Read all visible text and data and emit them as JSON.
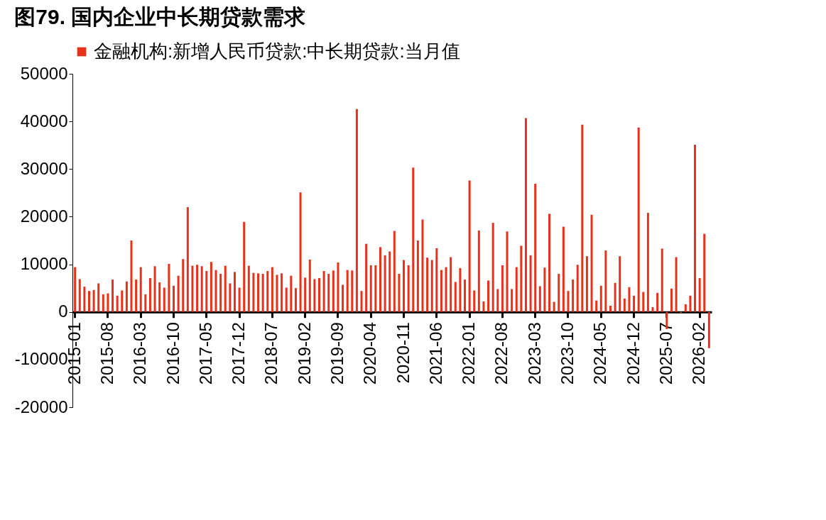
{
  "chart_data": {
    "type": "bar",
    "title": "图79. 国内企业中长期贷款需求",
    "categories": [
      "2015-01",
      null,
      null,
      null,
      null,
      null,
      null,
      "2015-08",
      null,
      null,
      null,
      null,
      null,
      null,
      "2016-03",
      null,
      null,
      null,
      null,
      null,
      null,
      "2016-10",
      null,
      null,
      null,
      null,
      null,
      null,
      "2017-05",
      null,
      null,
      null,
      null,
      null,
      null,
      "2017-12",
      null,
      null,
      null,
      null,
      null,
      null,
      "2018-07",
      null,
      null,
      null,
      null,
      null,
      null,
      "2019-02",
      null,
      null,
      null,
      null,
      null,
      null,
      "2019-09",
      null,
      null,
      null,
      null,
      null,
      null,
      "2020-04",
      null,
      null,
      null,
      null,
      null,
      null,
      "2020-11",
      null,
      null,
      null,
      null,
      null,
      null,
      "2021-06",
      null,
      null,
      null,
      null,
      null,
      null,
      "2022-01",
      null,
      null,
      null,
      null,
      null,
      null,
      "2022-08",
      null,
      null,
      null,
      null,
      null,
      null,
      "2023-03",
      null,
      null,
      null,
      null,
      null,
      null,
      "2023-10",
      null,
      null,
      null,
      null,
      null,
      null,
      "2024-05",
      null,
      null,
      null,
      null,
      null,
      null,
      "2024-12",
      null,
      null,
      null,
      null,
      null,
      null,
      "2025-07",
      null,
      null,
      null,
      null,
      null,
      null,
      "2026-02",
      null,
      null
    ],
    "series": [
      {
        "name": "金融机构:新增人民币贷款:中长期贷款:当月值",
        "color": "#e8311a",
        "values": [
          9400,
          6900,
          5300,
          4400,
          4600,
          6000,
          3700,
          3900,
          6800,
          3400,
          4500,
          6400,
          15000,
          6800,
          9400,
          3700,
          7100,
          9600,
          6200,
          5100,
          10100,
          5500,
          7600,
          11100,
          22000,
          9700,
          9900,
          9600,
          8600,
          10500,
          8800,
          8000,
          9700,
          6000,
          8400,
          5100,
          18900,
          9700,
          8200,
          8100,
          8000,
          8600,
          9400,
          7800,
          8100,
          5100,
          7600,
          5000,
          25100,
          7200,
          11000,
          6900,
          7100,
          8600,
          8000,
          8700,
          10400,
          5700,
          8800,
          8700,
          42600,
          4400,
          14300,
          9800,
          9800,
          13600,
          11900,
          12700,
          17000,
          8000,
          10900,
          9800,
          30300,
          15000,
          19400,
          11400,
          10900,
          13400,
          8800,
          9400,
          11500,
          6300,
          9200,
          6800,
          27600,
          4500,
          17100,
          2200,
          6600,
          18700,
          4800,
          9800,
          16900,
          4800,
          9400,
          13900,
          40700,
          11900,
          26900,
          5400,
          9300,
          20600,
          2100,
          8000,
          17900,
          4400,
          6800,
          9900,
          39300,
          11700,
          20400,
          2400,
          5500,
          12900,
          1300,
          6100,
          11700,
          2800,
          5200,
          3400,
          38700,
          4200,
          20800,
          1000,
          4000,
          13300,
          -3600,
          4900,
          11500,
          -200,
          1600,
          3400,
          35100,
          7100,
          16400,
          -7600
        ]
      }
    ],
    "ylim": [
      -20000,
      50000
    ],
    "yticks": [
      -20000,
      -10000,
      0,
      10000,
      20000,
      30000,
      40000,
      50000
    ],
    "grid": false,
    "legend": "top"
  }
}
